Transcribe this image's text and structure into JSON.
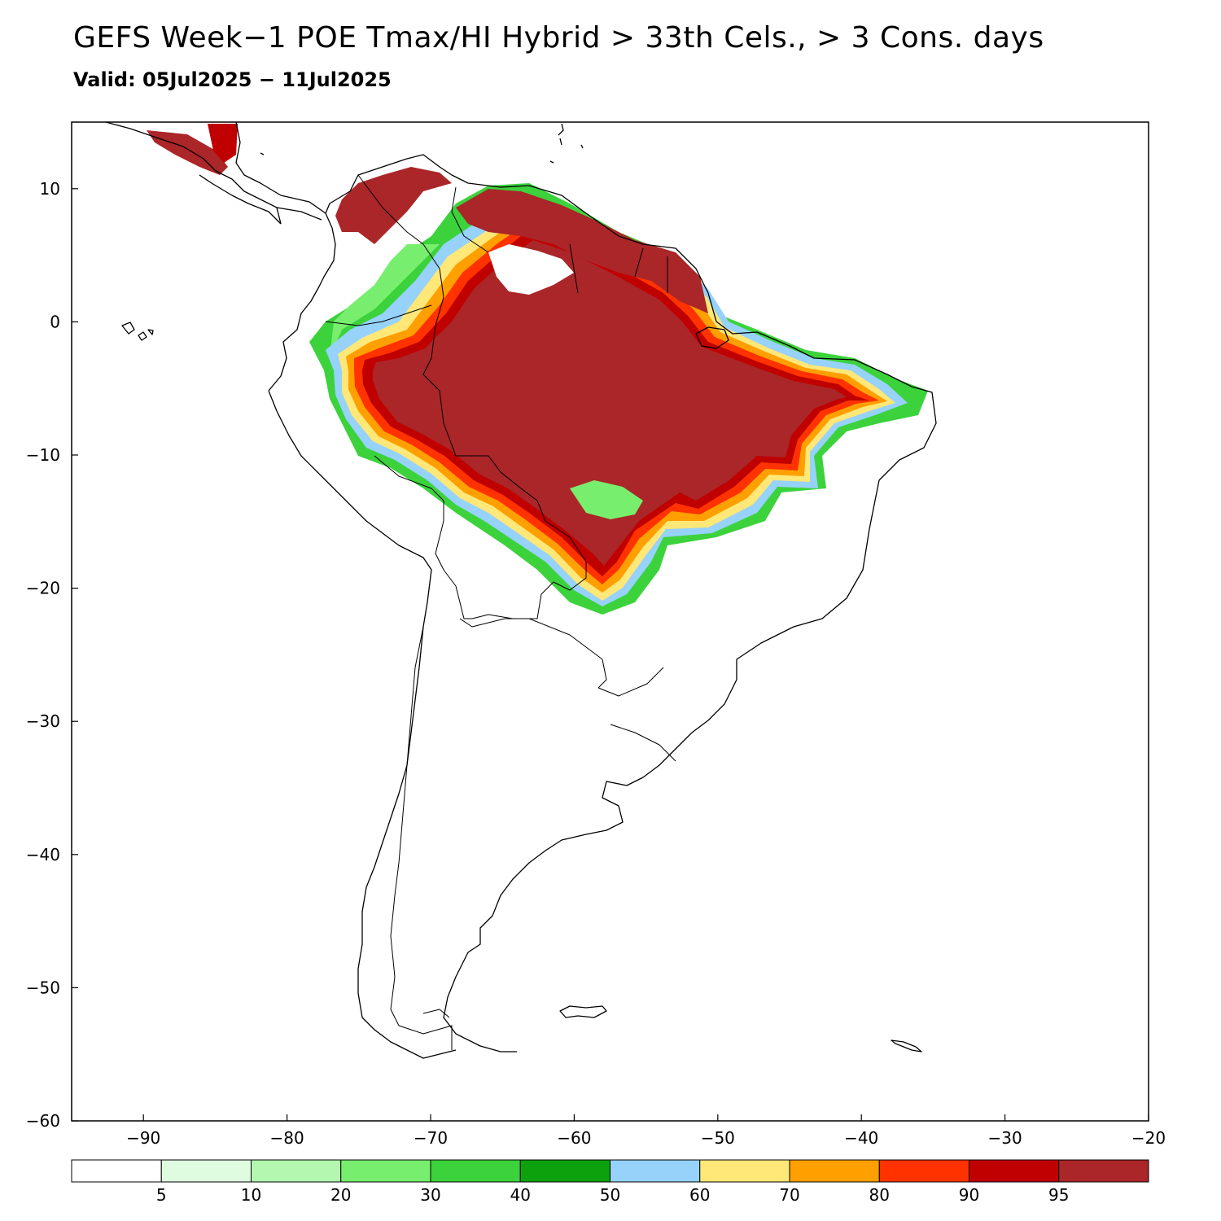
{
  "header": {
    "title": "GEFS Week−1 POE Tmax/HI Hybrid > 33th Cels., > 3 Cons. days",
    "subtitle": "Valid: 05Jul2025 − 11Jul2025"
  },
  "map": {
    "projection": "latlon",
    "region": "South America",
    "lon_range": [
      -95,
      -20
    ],
    "lat_range": [
      -60,
      15
    ],
    "x_ticks": [
      -90,
      -80,
      -70,
      -60,
      -50,
      -40,
      -30,
      -20
    ],
    "y_ticks": [
      10,
      0,
      -10,
      -20,
      -30,
      -40,
      -50,
      -60
    ],
    "x_tick_labels": [
      "−90",
      "−80",
      "−70",
      "−60",
      "−50",
      "−40",
      "−30",
      "−20"
    ],
    "y_tick_labels": [
      "10",
      "0",
      "−10",
      "−20",
      "−30",
      "−40",
      "−50",
      "−60"
    ],
    "coastline_color": "#000000"
  },
  "colorbar": {
    "colors": [
      "#ffffff",
      "#e0fce0",
      "#b3f7b0",
      "#78ee6e",
      "#3cd23c",
      "#0ea10e",
      "#96d2fa",
      "#ffe778",
      "#ff9f00",
      "#ff3200",
      "#c00000",
      "#aa2628"
    ],
    "labels": [
      "5",
      "10",
      "20",
      "30",
      "40",
      "50",
      "60",
      "70",
      "80",
      "90",
      "95"
    ]
  }
}
